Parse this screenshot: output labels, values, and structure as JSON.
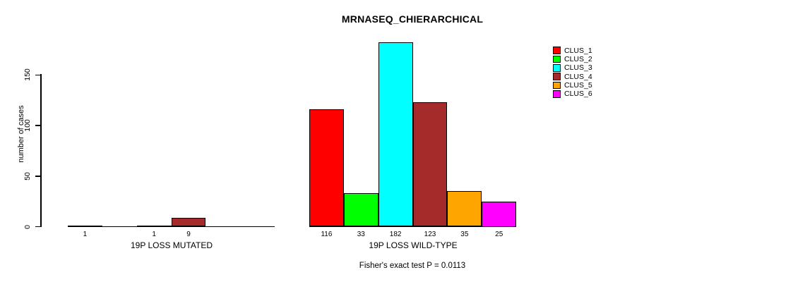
{
  "chart_data": {
    "type": "bar",
    "title": "MRNASEQ_CHIERARCHICAL",
    "ylabel": "number of cases",
    "ylim": [
      0,
      150
    ],
    "yticks": [
      0,
      50,
      100,
      150
    ],
    "grid": false,
    "legend_position": "right",
    "legend": {
      "labels": [
        "CLUS_1",
        "CLUS_2",
        "CLUS_3",
        "CLUS_4",
        "CLUS_5",
        "CLUS_6"
      ],
      "colors": [
        "#FF0000",
        "#00FF00",
        "#00FFFF",
        "#A52A2A",
        "#FFA500",
        "#FF00FF"
      ]
    },
    "groups": [
      {
        "label": "19P LOSS MUTATED",
        "values": [
          1,
          0,
          1,
          9,
          0,
          0
        ]
      },
      {
        "label": "19P LOSS WILD-TYPE",
        "values": [
          116,
          33,
          182,
          123,
          35,
          25
        ]
      }
    ],
    "annotation": "Fisher's exact test P = 0.0113"
  }
}
